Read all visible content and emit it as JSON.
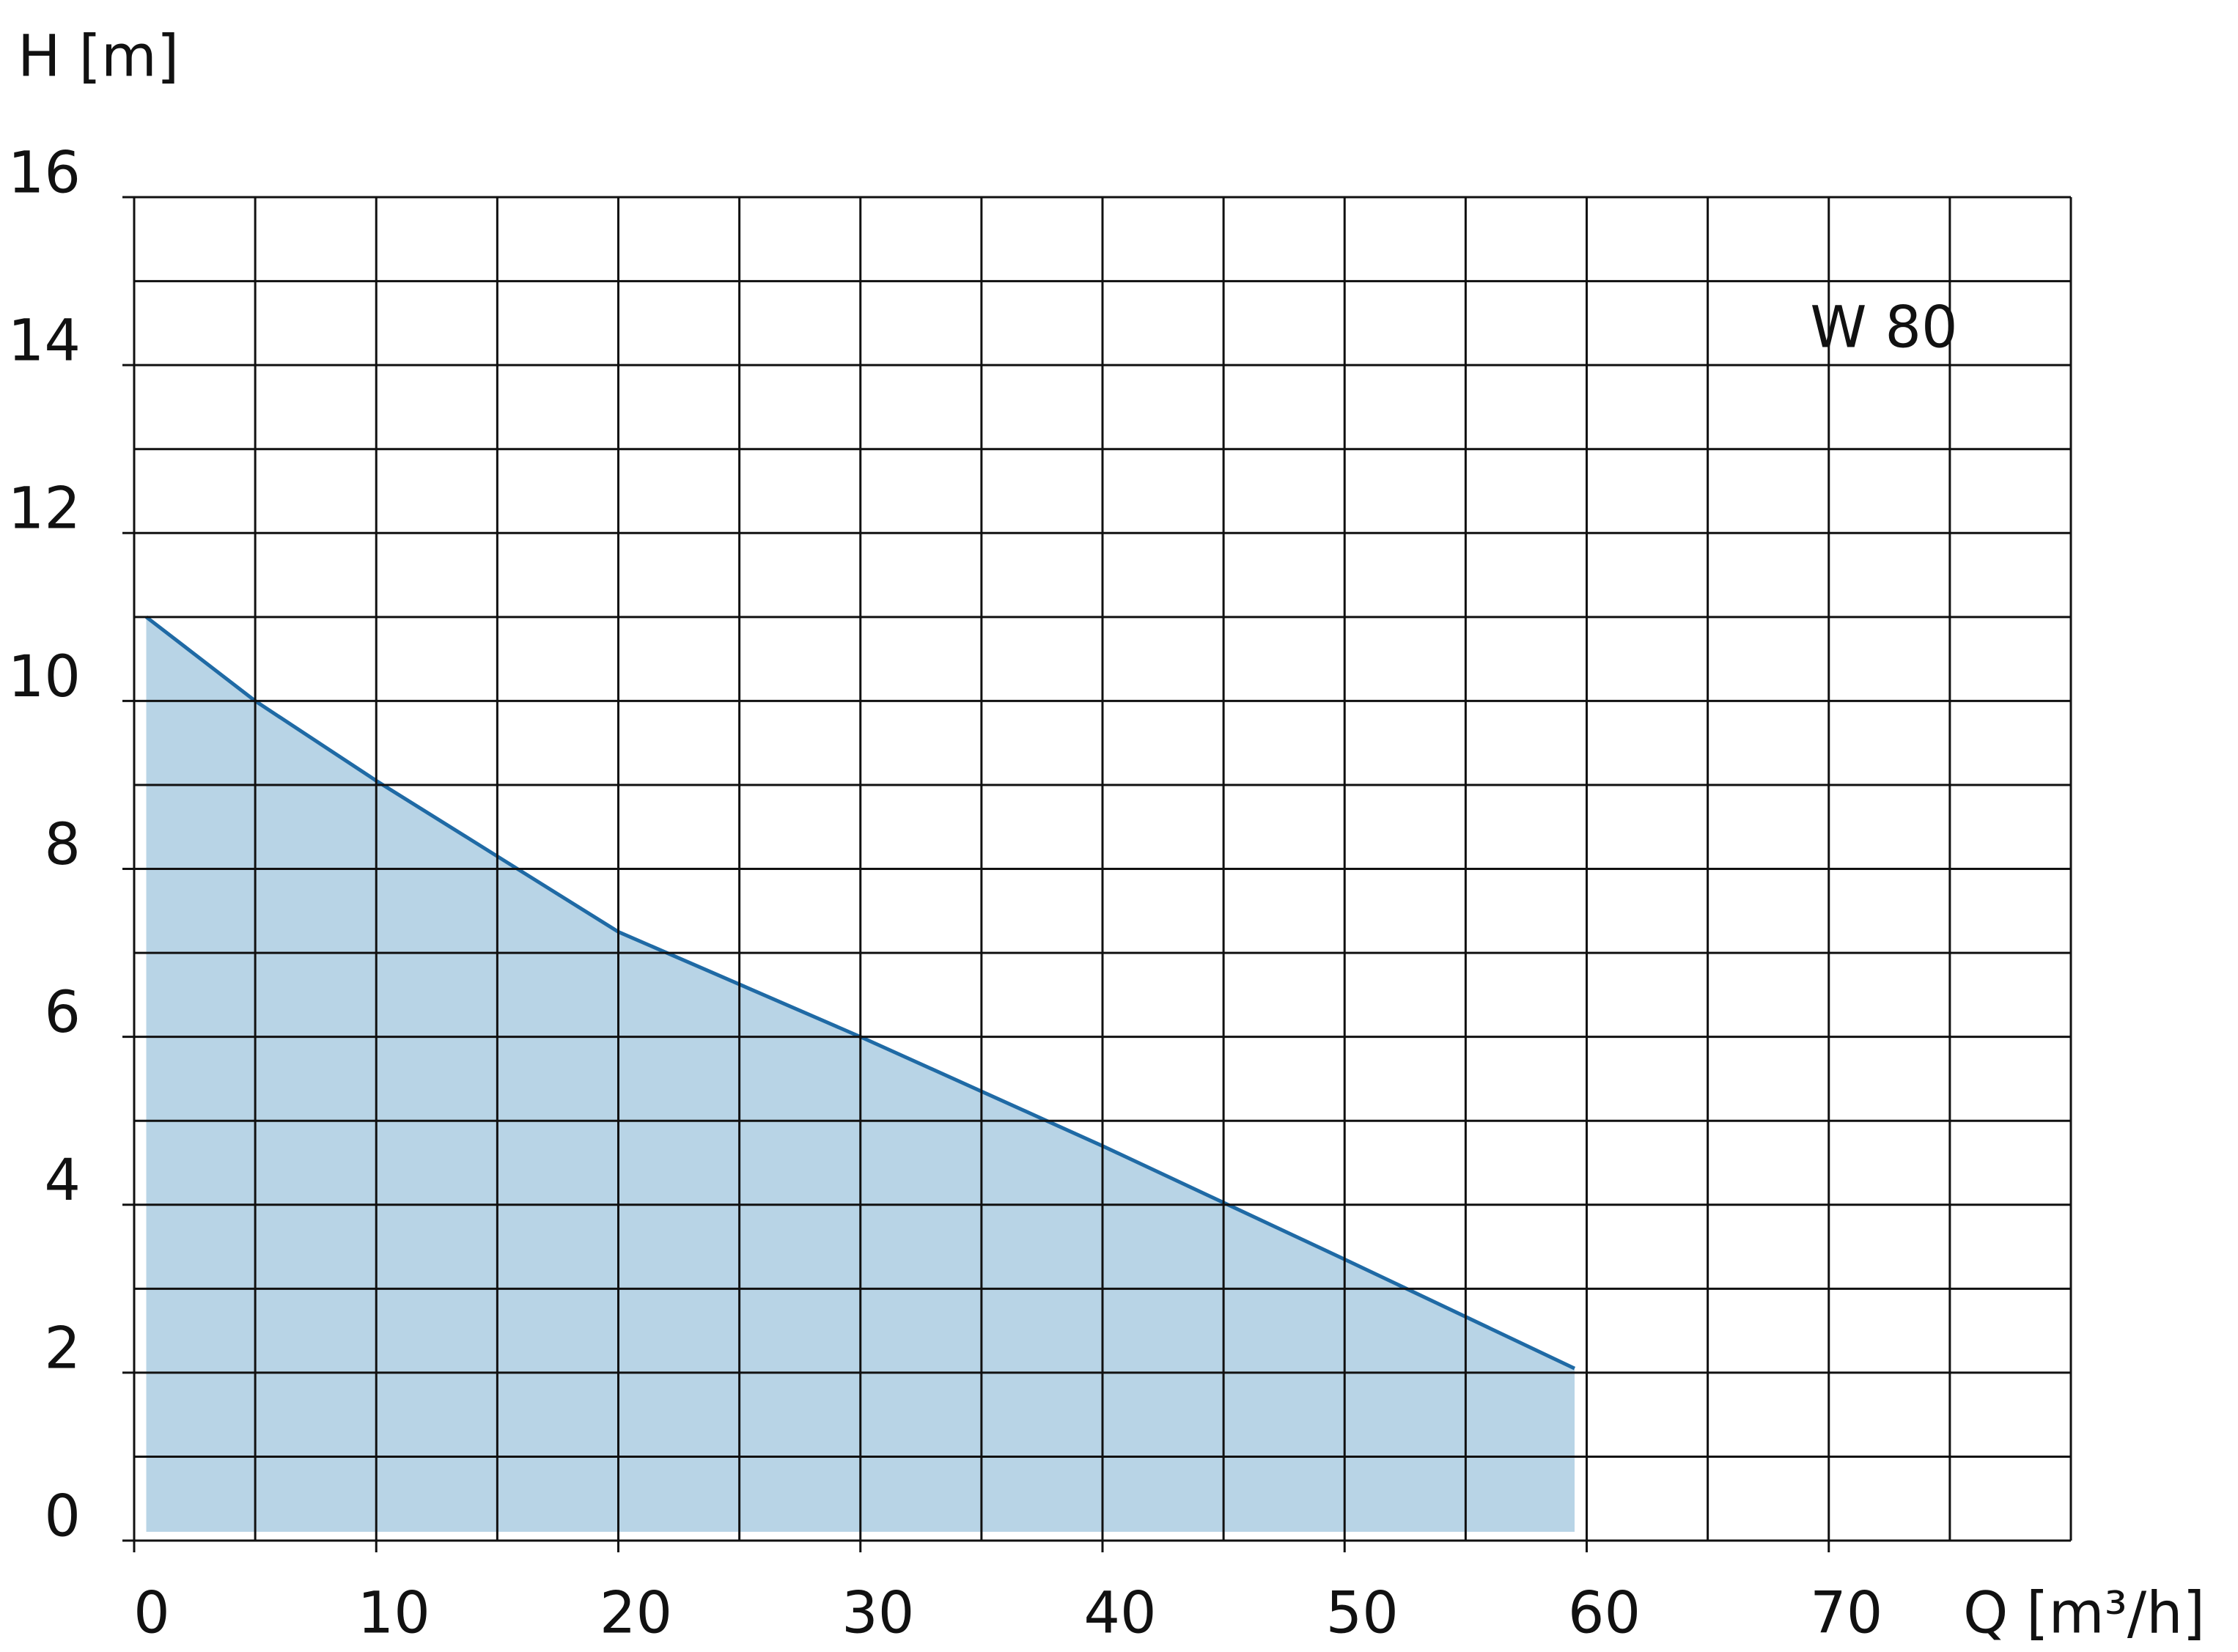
{
  "chart_data": {
    "type": "area",
    "ylabel": "H [m]",
    "xlabel": "Q [m³/h]",
    "annotation": "W 80",
    "x": [
      0.5,
      5,
      10,
      15,
      20,
      30,
      40,
      50,
      59.5
    ],
    "series": [
      {
        "name": "W 80",
        "color": "#1f6aa5",
        "fill": "#b8d4e6",
        "values": [
          11,
          10,
          9.05,
          8.15,
          7.25,
          6.0,
          4.7,
          3.35,
          2.05
        ]
      }
    ],
    "xlim": [
      0,
      80
    ],
    "xticks": [
      0,
      10,
      20,
      30,
      40,
      50,
      60,
      70
    ],
    "xgrid": [
      5,
      15,
      25,
      35,
      45,
      55,
      65,
      75,
      80
    ],
    "ylim": [
      0,
      16
    ],
    "yticks": [
      0,
      2,
      4,
      6,
      8,
      10,
      12,
      14,
      16
    ],
    "ygrid": [
      1,
      3,
      5,
      7,
      9,
      11,
      13,
      15
    ],
    "grid": true
  }
}
